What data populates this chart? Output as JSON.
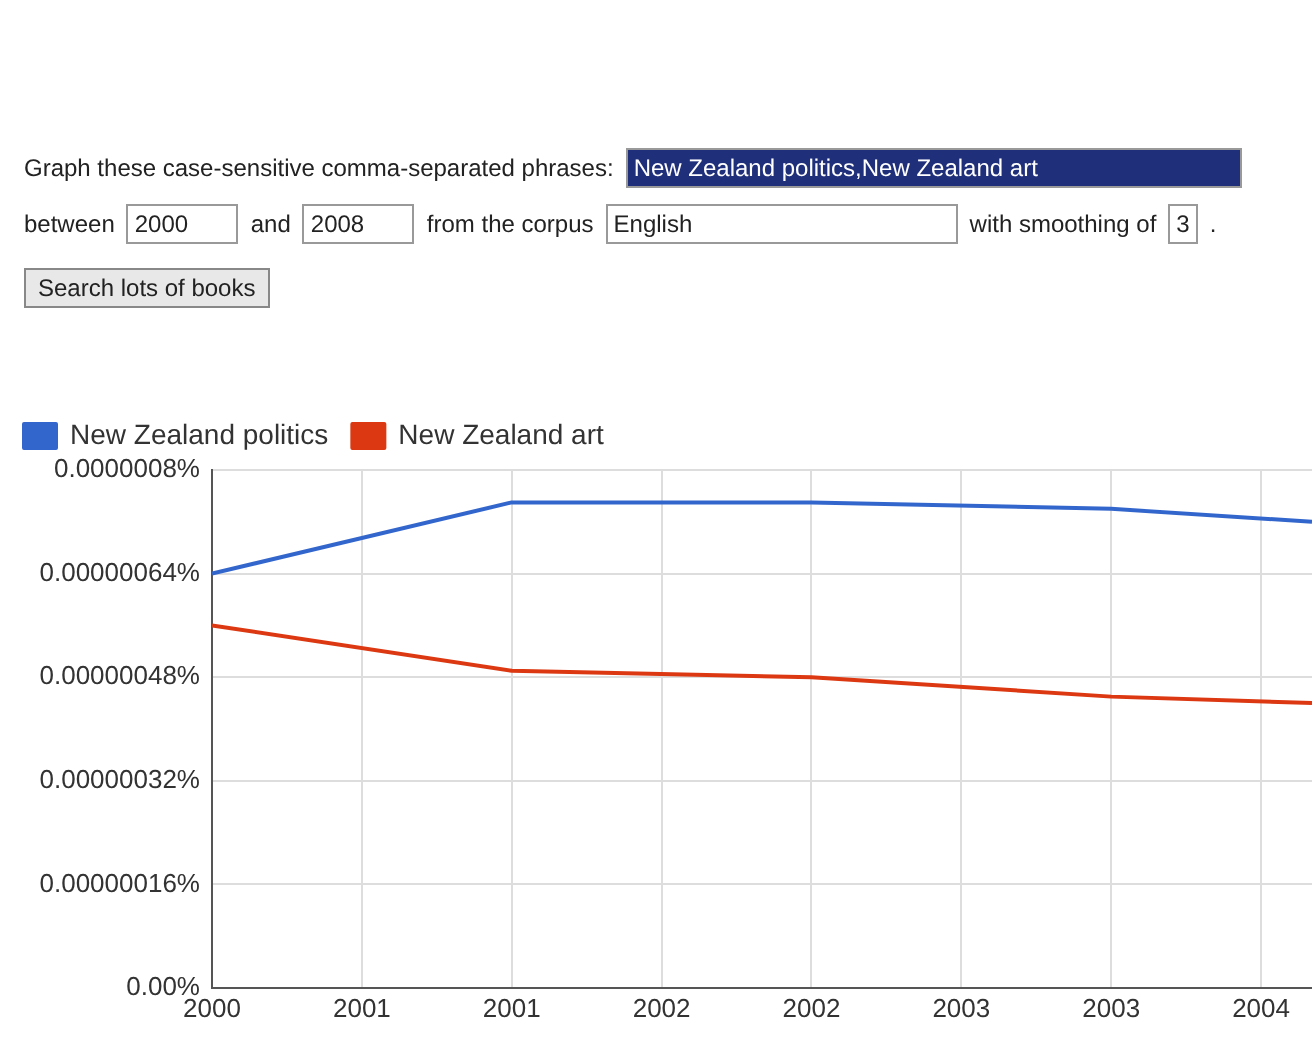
{
  "chart_data": {
    "type": "line",
    "x": [
      2000,
      2001,
      2002,
      2003,
      2003.67
    ],
    "series": [
      {
        "name": "New Zealand politics",
        "color": "#3366cc",
        "values": [
          6.4e-07,
          7.5e-07,
          7.5e-07,
          7.4e-07,
          7.2e-07
        ]
      },
      {
        "name": "New Zealand art",
        "color": "#dc3912",
        "values": [
          5.6e-07,
          4.9e-07,
          4.8e-07,
          4.5e-07,
          4.4e-07
        ]
      }
    ],
    "xlim": [
      2000,
      2003.67
    ],
    "xticks": [
      {
        "value": 2000,
        "label": "2000"
      },
      {
        "value": 2000.5,
        "label": "2001"
      },
      {
        "value": 2001,
        "label": "2001"
      },
      {
        "value": 2001.5,
        "label": "2002"
      },
      {
        "value": 2002,
        "label": "2002"
      },
      {
        "value": 2002.5,
        "label": "2003"
      },
      {
        "value": 2003,
        "label": "2003"
      },
      {
        "value": 2003.5,
        "label": "2004"
      }
    ],
    "ylim": [
      0,
      8e-07
    ],
    "yticks": [
      {
        "value": 0,
        "label": "0.00%"
      },
      {
        "value": 1.6e-07,
        "label": "0.00000016%"
      },
      {
        "value": 3.2e-07,
        "label": "0.00000032%"
      },
      {
        "value": 4.8e-07,
        "label": "0.00000048%"
      },
      {
        "value": 6.4e-07,
        "label": "0.00000064%"
      },
      {
        "value": 8e-07,
        "label": "0.0000008%"
      }
    ],
    "grid": true,
    "legend": "top left",
    "marker": "none",
    "line_style": "solid",
    "annotations": [
      "Graph these case-sensitive comma-separated phrases:",
      "New Zealand politics,New Zealand art",
      "between",
      "2000",
      "and",
      "2008",
      "from the corpus",
      "English",
      "with smoothing of",
      "3",
      ".",
      "Search lots of books"
    ]
  }
}
